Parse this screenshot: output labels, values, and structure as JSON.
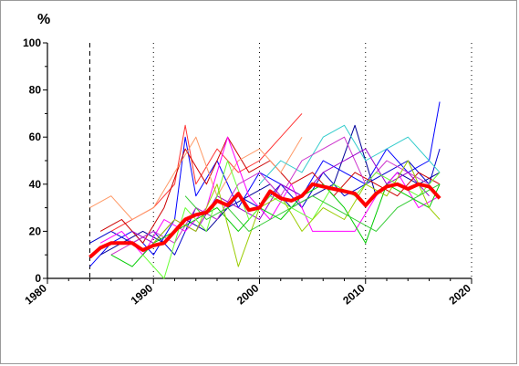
{
  "chart_data": {
    "type": "line",
    "title": "",
    "ylabel": "%",
    "xlabel": "",
    "xlim": [
      1980,
      2020
    ],
    "ylim": [
      0,
      100
    ],
    "x_ticks": [
      "1980",
      "1990",
      "2000",
      "2010",
      "2020"
    ],
    "y_ticks": [
      "0",
      "20",
      "40",
      "60",
      "80",
      "100"
    ],
    "vertical_markers": [
      {
        "x": 1984,
        "style": "dashed"
      },
      {
        "x": 1990,
        "style": "dotted"
      },
      {
        "x": 2000,
        "style": "dotted"
      },
      {
        "x": 2010,
        "style": "dotted"
      },
      {
        "x": 2020,
        "style": "dotted"
      }
    ],
    "grid": false,
    "legend": "none",
    "series": [
      {
        "color": "#ff0000",
        "x": [
          1984,
          1985,
          1986,
          1987,
          1988,
          1989,
          1990,
          1991,
          1992,
          1993,
          1994,
          1995,
          1996,
          1997,
          1998,
          1999,
          2000,
          2001,
          2002,
          2003,
          2004,
          2005,
          2006,
          2007,
          2008,
          2009,
          2010,
          2011,
          2012,
          2013,
          2014,
          2015,
          2016,
          2017
        ],
        "y": [
          9,
          13,
          15,
          15,
          15,
          12,
          14,
          15,
          20,
          25,
          27,
          28,
          33,
          31,
          36,
          29,
          30,
          37,
          34,
          33,
          35,
          40,
          39,
          38,
          37,
          36,
          31,
          36,
          39,
          40,
          38,
          40,
          39,
          34
        ]
      },
      {
        "color": "#0000ff",
        "x": [
          1984,
          1986,
          1988,
          1990,
          1992,
          1993,
          1994,
          1996,
          1998,
          2000,
          2002,
          2004,
          2006,
          2008,
          2010,
          2012,
          2014,
          2016,
          2017
        ],
        "y": [
          5,
          15,
          20,
          10,
          25,
          60,
          35,
          50,
          30,
          45,
          40,
          35,
          50,
          45,
          40,
          55,
          45,
          50,
          75
        ]
      },
      {
        "color": "#0000cc",
        "x": [
          1984,
          1986,
          1988,
          1990,
          1992,
          1994,
          1996,
          1998,
          2000,
          2002,
          2004,
          2006,
          2008,
          2010,
          2012,
          2014,
          2016,
          2017
        ],
        "y": [
          15,
          20,
          15,
          20,
          10,
          30,
          25,
          35,
          30,
          40,
          30,
          45,
          35,
          40,
          45,
          50,
          40,
          55
        ]
      },
      {
        "color": "#000099",
        "x": [
          1985,
          1987,
          1989,
          1991,
          1993,
          1995,
          1997,
          1999,
          2001,
          2003,
          2005,
          2007,
          2009,
          2011,
          2013,
          2015,
          2017
        ],
        "y": [
          10,
          15,
          20,
          15,
          25,
          20,
          30,
          35,
          40,
          30,
          35,
          40,
          65,
          35,
          45,
          40,
          45
        ]
      },
      {
        "color": "#ff3333",
        "x": [
          1986,
          1988,
          1990,
          1992,
          1993,
          1994,
          1996,
          1998,
          2000,
          2002,
          2003,
          2004
        ],
        "y": [
          20,
          25,
          30,
          40,
          65,
          40,
          55,
          45,
          50,
          60,
          65,
          70
        ]
      },
      {
        "color": "#cc0000",
        "x": [
          1985,
          1987,
          1989,
          1991,
          1993,
          1995,
          1997,
          1999,
          2001,
          2003,
          2005,
          2007,
          2009,
          2011,
          2013,
          2015,
          2017
        ],
        "y": [
          20,
          25,
          15,
          30,
          55,
          40,
          60,
          45,
          50,
          40,
          45,
          35,
          45,
          40,
          35,
          45,
          40
        ]
      },
      {
        "color": "#ff9966",
        "x": [
          1984,
          1986,
          1988,
          1990,
          1992,
          1994,
          1996,
          1998,
          2000,
          2002,
          2004
        ],
        "y": [
          30,
          35,
          25,
          30,
          45,
          60,
          35,
          50,
          55,
          45,
          60
        ]
      },
      {
        "color": "#33cccc",
        "x": [
          2000,
          2002,
          2004,
          2006,
          2008,
          2010,
          2012,
          2014,
          2016,
          2017
        ],
        "y": [
          40,
          50,
          45,
          60,
          65,
          50,
          55,
          60,
          50,
          45
        ]
      },
      {
        "color": "#ff00ff",
        "x": [
          1985,
          1987,
          1989,
          1991,
          1993,
          1995,
          1997,
          1999,
          2001,
          2003,
          2005,
          2007,
          2009,
          2011,
          2013,
          2015,
          2017
        ],
        "y": [
          15,
          20,
          10,
          25,
          20,
          30,
          60,
          35,
          25,
          40,
          20,
          20,
          20,
          35,
          45,
          30,
          35
        ]
      },
      {
        "color": "#cc33cc",
        "x": [
          1986,
          1988,
          1990,
          1992,
          1994,
          1996,
          1998,
          2000,
          2002,
          2004,
          2006,
          2008,
          2010,
          2012,
          2014,
          2016
        ],
        "y": [
          10,
          15,
          20,
          15,
          30,
          25,
          40,
          45,
          35,
          50,
          55,
          60,
          40,
          50,
          45,
          40
        ]
      },
      {
        "color": "#9900cc",
        "x": [
          1988,
          1990,
          1992,
          1994,
          1996,
          1998,
          2000,
          2002,
          2004,
          2006,
          2008,
          2010,
          2012,
          2014,
          2016
        ],
        "y": [
          20,
          15,
          25,
          20,
          35,
          30,
          25,
          40,
          35,
          45,
          50,
          55,
          40,
          45,
          35
        ]
      },
      {
        "color": "#00cc00",
        "x": [
          1986,
          1988,
          1990,
          1992,
          1994,
          1996,
          1998,
          2000,
          2002,
          2004,
          2006,
          2008,
          2010,
          2012,
          2014,
          2016,
          2017
        ],
        "y": [
          10,
          5,
          15,
          20,
          25,
          30,
          20,
          30,
          25,
          35,
          40,
          30,
          15,
          40,
          35,
          30,
          40
        ]
      },
      {
        "color": "#66ff33",
        "x": [
          1989,
          1991,
          1993,
          1995,
          1997,
          1999,
          2001,
          2003,
          2005,
          2007,
          2009,
          2011,
          2013,
          2015,
          2017
        ],
        "y": [
          10,
          0,
          30,
          20,
          50,
          25,
          35,
          30,
          25,
          40,
          35,
          45,
          40,
          35,
          45
        ]
      },
      {
        "color": "#99cc00",
        "x": [
          1990,
          1992,
          1994,
          1996,
          1998,
          2000,
          2002,
          2004,
          2006,
          2008,
          2010,
          2012,
          2014,
          2016,
          2017
        ],
        "y": [
          15,
          25,
          20,
          40,
          5,
          30,
          35,
          20,
          30,
          25,
          40,
          35,
          50,
          30,
          25
        ]
      },
      {
        "color": "#33cc33",
        "x": [
          1993,
          1995,
          1997,
          1999,
          2001,
          2003,
          2005,
          2007,
          2009,
          2011,
          2013,
          2015,
          2017
        ],
        "y": [
          35,
          25,
          30,
          20,
          25,
          30,
          35,
          30,
          25,
          20,
          30,
          35,
          40
        ]
      }
    ]
  }
}
